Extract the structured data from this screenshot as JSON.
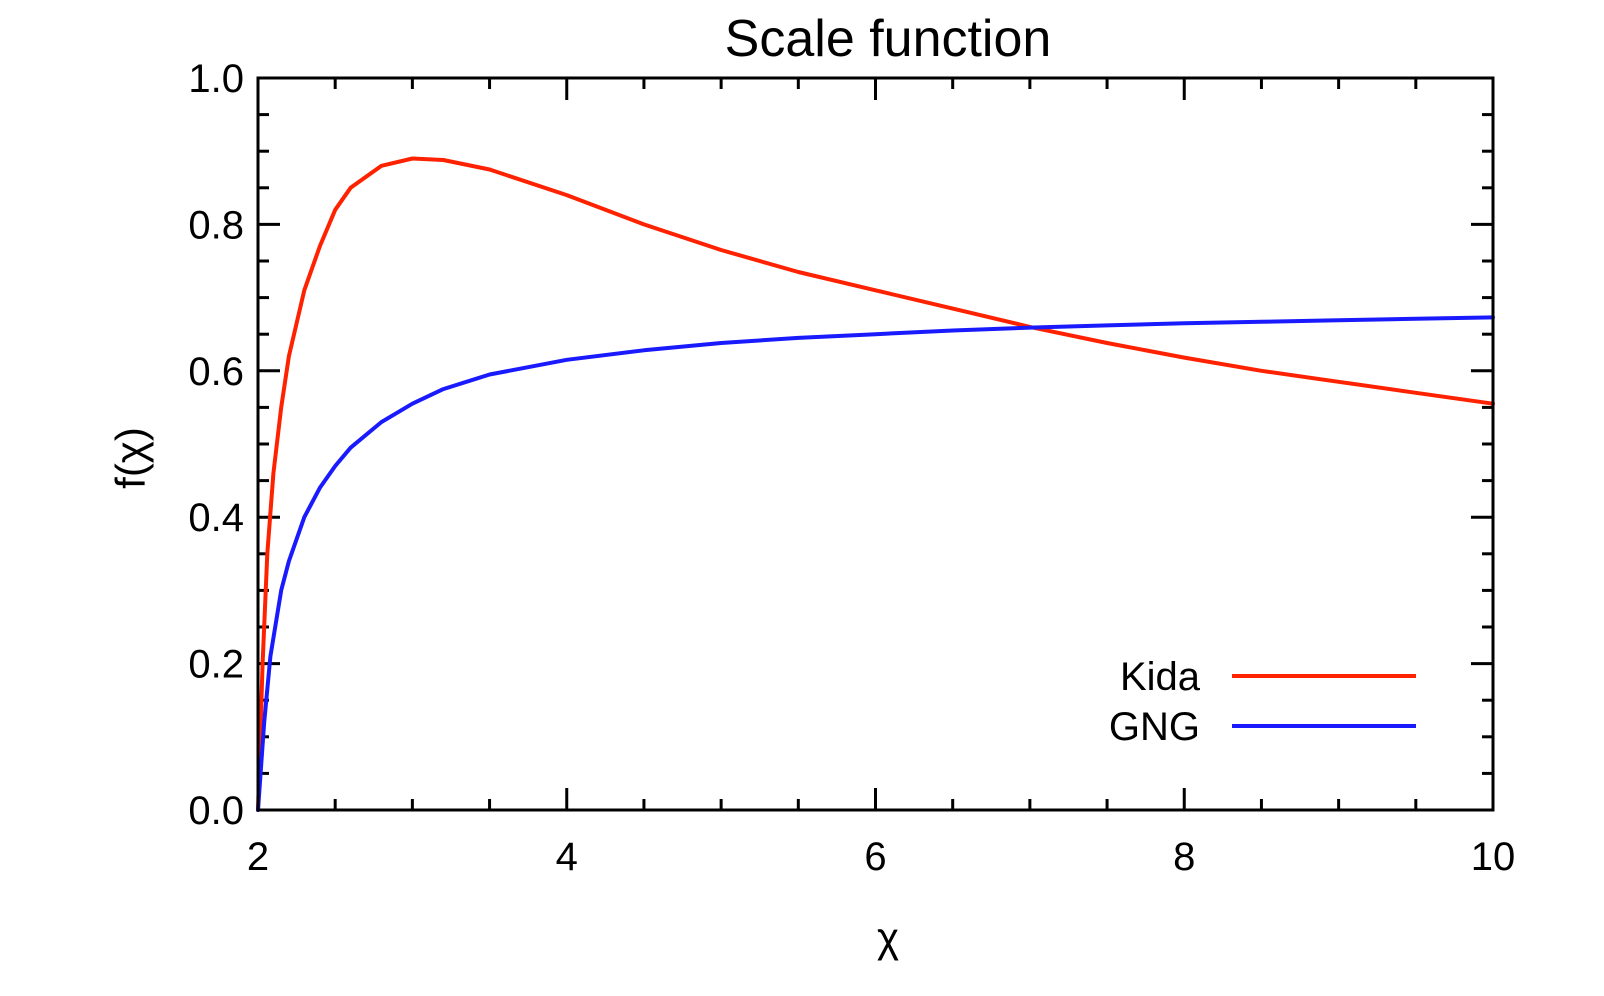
{
  "chart_data": {
    "type": "line",
    "title": "Scale function",
    "xlabel": "χ",
    "ylabel": "f(χ)",
    "xlim": [
      2,
      10
    ],
    "ylim": [
      0,
      1.0
    ],
    "xticks": [
      2,
      4,
      6,
      8,
      10
    ],
    "xtick_labels": [
      "2",
      "4",
      "6",
      "8",
      "10"
    ],
    "yticks": [
      0.0,
      0.2,
      0.4,
      0.6,
      0.8,
      1.0
    ],
    "ytick_labels": [
      "0.0",
      "0.2",
      "0.4",
      "0.6",
      "0.8",
      "1.0"
    ],
    "grid": false,
    "legend_position": "bottom-right",
    "series": [
      {
        "name": "Kida",
        "color": "#ff2200",
        "x": [
          2.0,
          2.03,
          2.06,
          2.1,
          2.15,
          2.2,
          2.3,
          2.4,
          2.5,
          2.6,
          2.8,
          3.0,
          3.2,
          3.5,
          4.0,
          4.5,
          5.0,
          5.5,
          6.0,
          6.5,
          7.0,
          7.5,
          8.0,
          8.5,
          9.0,
          9.5,
          10.0
        ],
        "y": [
          0.0,
          0.2,
          0.35,
          0.46,
          0.55,
          0.62,
          0.71,
          0.77,
          0.82,
          0.85,
          0.88,
          0.89,
          0.888,
          0.875,
          0.84,
          0.8,
          0.765,
          0.735,
          0.71,
          0.685,
          0.66,
          0.638,
          0.618,
          0.6,
          0.585,
          0.57,
          0.555
        ]
      },
      {
        "name": "GNG",
        "color": "#1a1aff",
        "x": [
          2.0,
          2.04,
          2.08,
          2.15,
          2.2,
          2.3,
          2.4,
          2.5,
          2.6,
          2.8,
          3.0,
          3.2,
          3.5,
          4.0,
          4.5,
          5.0,
          5.5,
          6.0,
          6.5,
          7.0,
          7.5,
          8.0,
          8.5,
          9.0,
          9.5,
          10.0
        ],
        "y": [
          0.0,
          0.12,
          0.21,
          0.3,
          0.34,
          0.4,
          0.44,
          0.47,
          0.495,
          0.53,
          0.555,
          0.575,
          0.595,
          0.615,
          0.628,
          0.638,
          0.645,
          0.65,
          0.655,
          0.659,
          0.662,
          0.665,
          0.667,
          0.669,
          0.671,
          0.673
        ]
      }
    ]
  }
}
